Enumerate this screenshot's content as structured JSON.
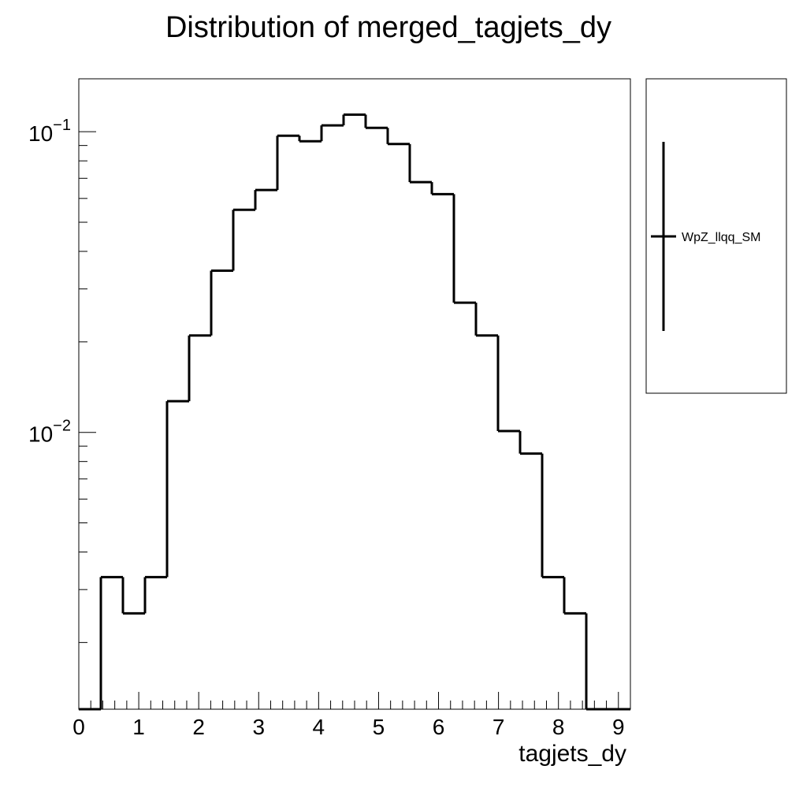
{
  "chart_data": {
    "type": "histogram",
    "title": "Distribution of merged_tagjets_dy",
    "xlabel": "tagjets_dy",
    "ylabel": "",
    "xlim": [
      0,
      9.2
    ],
    "ylog": true,
    "ylim": [
      0.0012,
      0.15
    ],
    "x_ticks": [
      "0",
      "1",
      "2",
      "3",
      "4",
      "5",
      "6",
      "7",
      "8",
      "9"
    ],
    "y_tick_labels": [
      {
        "value": 0.1,
        "base": "10",
        "exp": "−1"
      },
      {
        "value": 0.01,
        "base": "10",
        "exp": "−2"
      }
    ],
    "bin_edges": [
      0,
      0.368,
      0.736,
      1.104,
      1.472,
      1.84,
      2.208,
      2.576,
      2.944,
      3.312,
      3.68,
      4.048,
      4.416,
      4.784,
      5.152,
      5.52,
      5.888,
      6.256,
      6.624,
      6.992,
      7.36,
      7.728,
      8.096,
      8.464,
      8.832,
      9.2
    ],
    "series": [
      {
        "name": "WpZ_llqq_SM",
        "color": "#000000",
        "values": [
          0,
          0.0033,
          0.0025,
          0.0033,
          0.0127,
          0.021,
          0.0345,
          0.055,
          0.064,
          0.097,
          0.093,
          0.105,
          0.114,
          0.103,
          0.091,
          0.068,
          0.062,
          0.027,
          0.021,
          0.0101,
          0.0085,
          0.0033,
          0.0025,
          0,
          0
        ]
      }
    ],
    "grid": false,
    "legend": {
      "position": "right",
      "entries": [
        "WpZ_llqq_SM"
      ]
    }
  }
}
